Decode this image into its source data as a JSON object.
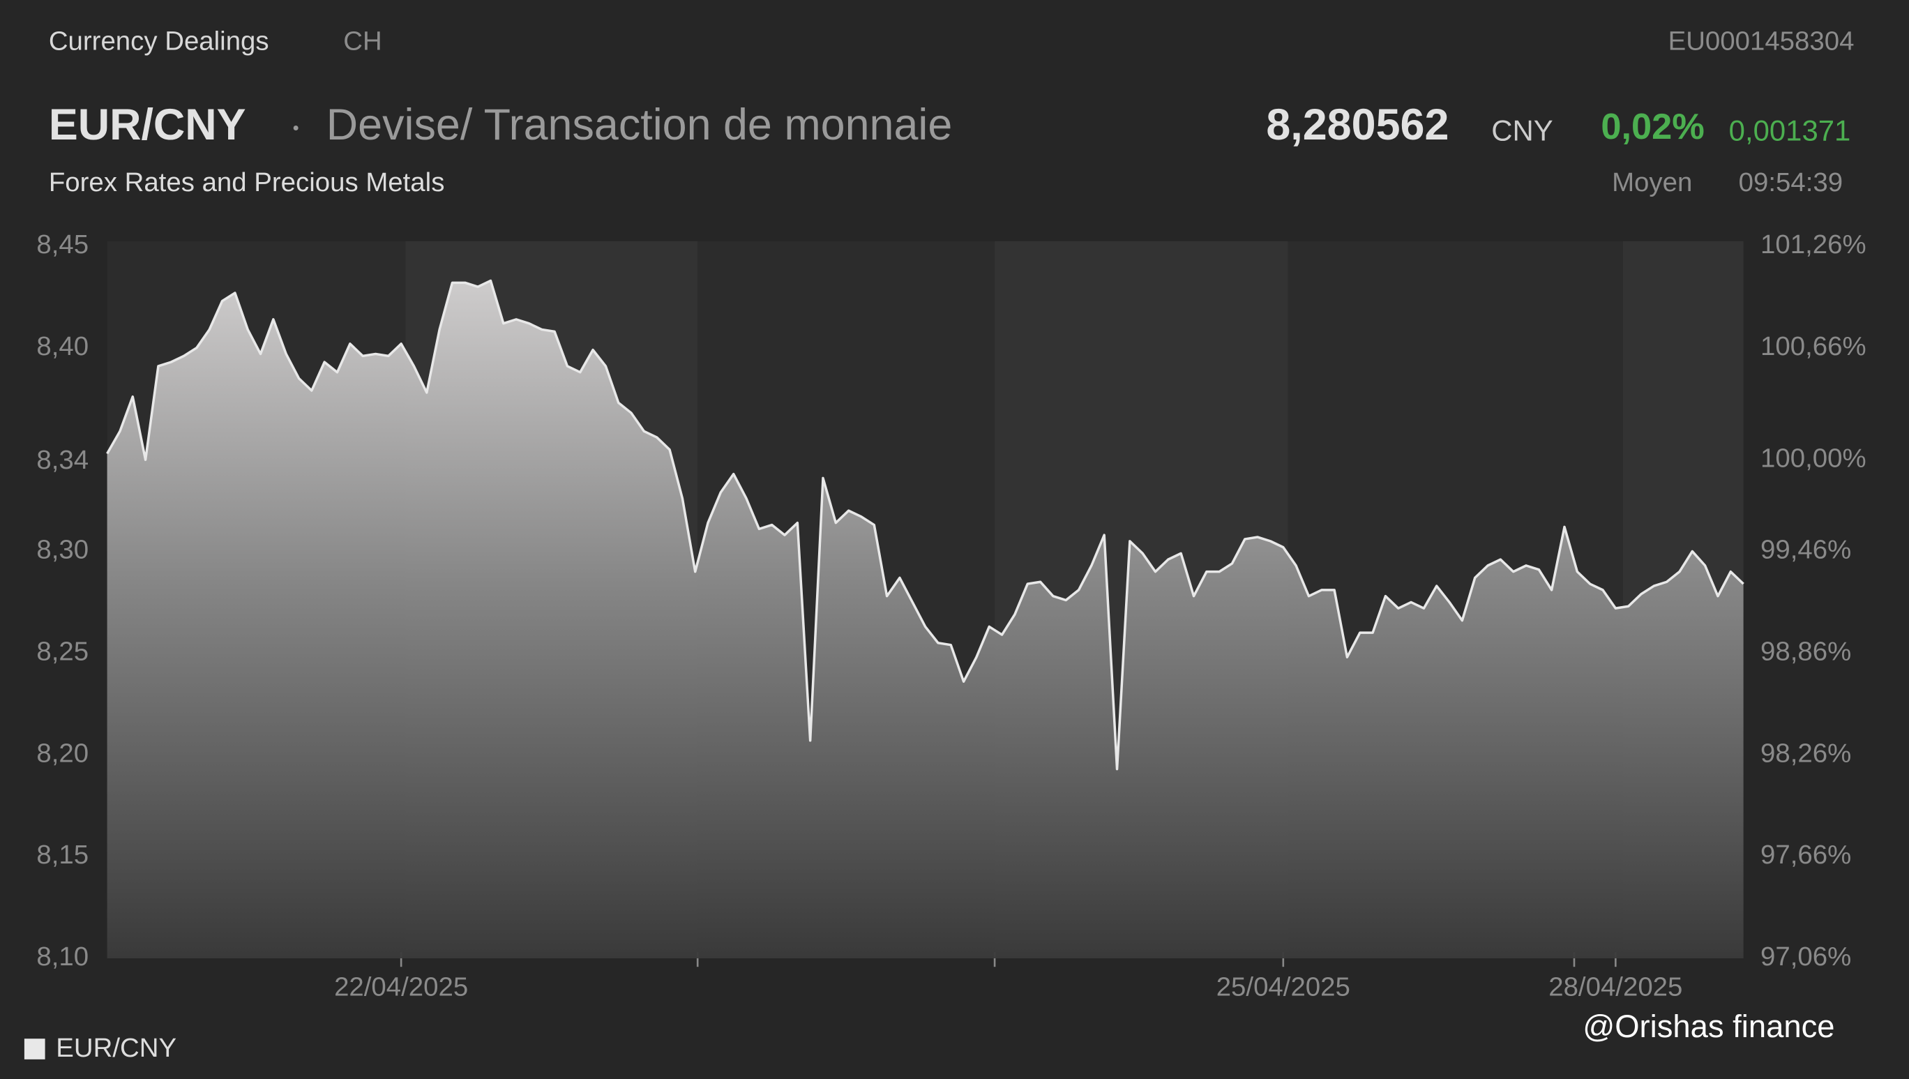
{
  "header": {
    "section": "Currency Dealings",
    "country": "CH",
    "isin": "EU0001458304",
    "symbol": "EUR/CNY",
    "description": "Devise/ Transaction de monnaie",
    "price": "8,280562",
    "currency": "CNY",
    "change_pct": "0,02%",
    "change_abs": "0,001371",
    "category": "Forex Rates and Precious Metals",
    "price_type": "Moyen",
    "time": "09:54:39"
  },
  "watermark": "@Orishas finance",
  "chart_data": {
    "type": "area",
    "categories": [
      null,
      null,
      null,
      null,
      null,
      null,
      null,
      null,
      null,
      null,
      null,
      null,
      null,
      null,
      null,
      null,
      null,
      null,
      null,
      null,
      null,
      null,
      null,
      "22/04/2025",
      null,
      null,
      null,
      null,
      null,
      null,
      null,
      null,
      null,
      null,
      null,
      null,
      null,
      null,
      null,
      null,
      null,
      null,
      null,
      null,
      null,
      null,
      null,
      null,
      null,
      null,
      null,
      null,
      null,
      null,
      null,
      null,
      null,
      null,
      null,
      null,
      null,
      null,
      null,
      null,
      null,
      null,
      null,
      null,
      null,
      null,
      null,
      null,
      null,
      null,
      null,
      null,
      null,
      null,
      null,
      null,
      null,
      null,
      null,
      null,
      null,
      null,
      null,
      null,
      null,
      null,
      null,
      null,
      "25/04/2025",
      null,
      null,
      null,
      null,
      null,
      null,
      null,
      null,
      null,
      null,
      null,
      null,
      null,
      null,
      null,
      null,
      null,
      null,
      null,
      null,
      null,
      null,
      null,
      null,
      null,
      "28/04/2025",
      null,
      null,
      null,
      null,
      null,
      null,
      null,
      null,
      null,
      null
    ],
    "series": [
      {
        "name": "EUR/CNY",
        "color": "#e8e8e8",
        "values": [
          8.348,
          8.359,
          8.376,
          8.345,
          8.391,
          8.393,
          8.396,
          8.4,
          8.409,
          8.423,
          8.427,
          8.409,
          8.397,
          8.414,
          8.397,
          8.385,
          8.379,
          8.393,
          8.388,
          8.402,
          8.396,
          8.397,
          8.396,
          8.402,
          8.391,
          8.378,
          8.409,
          8.432,
          8.432,
          8.43,
          8.433,
          8.412,
          8.414,
          8.412,
          8.409,
          8.408,
          8.391,
          8.388,
          8.399,
          8.391,
          8.373,
          8.368,
          8.359,
          8.356,
          8.35,
          8.326,
          8.29,
          8.314,
          8.329,
          8.338,
          8.326,
          8.311,
          8.313,
          8.308,
          8.314,
          8.207,
          8.336,
          8.314,
          8.32,
          8.317,
          8.313,
          8.278,
          8.287,
          8.275,
          8.263,
          8.255,
          8.254,
          8.236,
          8.248,
          8.263,
          8.259,
          8.269,
          8.284,
          8.285,
          8.278,
          8.276,
          8.281,
          8.293,
          8.308,
          8.193,
          8.305,
          8.299,
          8.29,
          8.296,
          8.299,
          8.278,
          8.29,
          8.29,
          8.294,
          8.306,
          8.307,
          8.305,
          8.302,
          8.293,
          8.278,
          8.281,
          8.281,
          8.248,
          8.26,
          8.26,
          8.278,
          8.272,
          8.275,
          8.272,
          8.283,
          8.275,
          8.266,
          8.287,
          8.293,
          8.296,
          8.29,
          8.293,
          8.291,
          8.281,
          8.312,
          8.29,
          8.284,
          8.281,
          8.272,
          8.273,
          8.279,
          8.283,
          8.285,
          8.29,
          8.3,
          8.293,
          8.278,
          8.29,
          8.284
        ]
      }
    ],
    "ylim": [
      8.1,
      8.45
    ],
    "yticks": [
      {
        "value": 8.1,
        "label": "8,10"
      },
      {
        "value": 8.15,
        "label": "8,15"
      },
      {
        "value": 8.2,
        "label": "8,20"
      },
      {
        "value": 8.25,
        "label": "8,25"
      },
      {
        "value": 8.3,
        "label": "8,30"
      },
      {
        "value": 8.344,
        "label": "8,34"
      },
      {
        "value": 8.4,
        "label": "8,40"
      },
      {
        "value": 8.45,
        "label": "8,45"
      }
    ],
    "y2lim": [
      97.06,
      101.26
    ],
    "y2ticks": [
      {
        "value": 97.06,
        "label": "97,06%"
      },
      {
        "value": 97.66,
        "label": "97,66%"
      },
      {
        "value": 98.26,
        "label": "98,26%"
      },
      {
        "value": 98.86,
        "label": "98,86%"
      },
      {
        "value": 99.46,
        "label": "99,46%"
      },
      {
        "value": 100.0,
        "label": "100,00%"
      },
      {
        "value": 100.66,
        "label": "100,66%"
      },
      {
        "value": 101.26,
        "label": "101,26%"
      }
    ],
    "grid": false
  }
}
